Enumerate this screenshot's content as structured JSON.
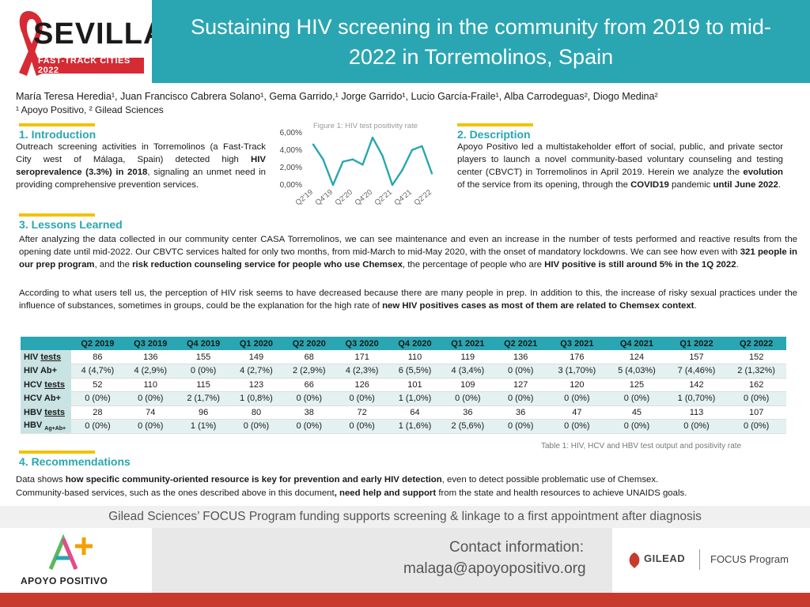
{
  "header": {
    "title": "Sustaining HIV screening in the community from 2019 to mid-2022 in Torremolinos, Spain",
    "logo_word": "SEVILLA",
    "logo_band": "FAST-TRACK CITIES 2022"
  },
  "authors": {
    "line": "María Teresa Heredia¹, Juan Francisco Cabrera Solano¹, Gema Garrido,¹ Jorge Garrido¹, Lucio García-Fraile¹, Alba Carrodeguas², Diogo Medina²",
    "affiliations": "¹ Apoyo Positivo, ² Gilead Sciences"
  },
  "sections": {
    "intro_title": "1. Introduction",
    "intro_text_1": "Outreach screening activities in Torremolinos (a Fast-Track City west of Málaga, Spain) detected high ",
    "intro_bold_1": "HIV seroprevalence (3.3%) in 2018",
    "intro_text_2": ", signaling an unmet need in providing comprehensive prevention services.",
    "desc_title": "2. Description",
    "desc_text_1": "Apoyo Positivo led a multistakeholder effort of social, public, and private sector players to launch a novel community-based voluntary counseling and testing center (CBVCT) in Torremolinos in April 2019. Herein we analyze the ",
    "desc_bold_1": "evolution",
    "desc_text_2": " of the service from its opening, through the ",
    "desc_bold_2": "COVID19",
    "desc_text_3": " pandemic ",
    "desc_bold_3": "until June 2022",
    "desc_text_4": ".",
    "lessons_title": "3. Lessons Learned",
    "lessons_p1_a": "After analyzing the data collected in our community center CASA Torremolinos, we can see maintenance and even an increase in the number of tests performed and reactive results from the opening date until mid-2022. Our CBVTC services halted for only two months, from mid-March to mid-May 2020, with the onset of mandatory lockdowns. We can see how even with ",
    "lessons_p1_b": "321 people in our prep program",
    "lessons_p1_c": ", and the ",
    "lessons_p1_d": "risk reduction counseling service for people who use Chemsex",
    "lessons_p1_e": ", the percentage of people who are ",
    "lessons_p1_f": "HIV positive is still around 5% in the 1Q 2022",
    "lessons_p1_g": ".",
    "lessons_p2_a": "According to what users tell us, the perception of HIV risk seems to have decreased because there are many people in prep. In addition to this, the increase of risky sexual practices under the influence of substances, sometimes in groups, could be the explanation for the high rate of ",
    "lessons_p2_b": "new HIV positives cases as most of them are related to Chemsex context",
    "lessons_p2_c": ".",
    "reco_title": "4. Recommendations",
    "reco_l1_a": "Data shows ",
    "reco_l1_b": "how specific community-oriented resource is key for prevention and early HIV detection",
    "reco_l1_c": ", even to detect possible problematic use of Chemsex.",
    "reco_l2_a": "Community-based services, such as the ones described above in this document",
    "reco_l2_b": ", need help and support",
    "reco_l2_c": " from the state and health resources to achieve UNAIDS goals."
  },
  "chart_data": {
    "type": "line",
    "title": "Figure 1: HIV test positivity rate",
    "x": [
      "Q2'19",
      "Q3'19",
      "Q4'19",
      "Q1'20",
      "Q2'20",
      "Q3'20",
      "Q4'20",
      "Q1'21",
      "Q2'21",
      "Q3'21",
      "Q4'21",
      "Q1'22",
      "Q2'22"
    ],
    "x_tick_labels": [
      "Q2'19",
      "Q4'19",
      "Q2'20",
      "Q4'20",
      "Q2'21",
      "Q4'21",
      "Q2'22"
    ],
    "values": [
      4.65,
      2.94,
      0.0,
      2.68,
      2.94,
      2.34,
      5.45,
      3.36,
      0.0,
      1.7,
      4.03,
      4.46,
      1.32
    ],
    "y_ticks": [
      "0,00%",
      "2,00%",
      "4,00%",
      "6,00%"
    ],
    "ylim": [
      0,
      6
    ],
    "color": "#2aa6b2"
  },
  "table": {
    "columns": [
      "",
      "Q2 2019",
      "Q3 2019",
      "Q4 2019",
      "Q1 2020",
      "Q2 2020",
      "Q3 2020",
      "Q4 2020",
      "Q1 2021",
      "Q2 2021",
      "Q3 2021",
      "Q4 2021",
      "Q1 2022",
      "Q2 2022"
    ],
    "rows": [
      {
        "label_a": "HIV ",
        "label_u": "tests",
        "label_sub": "",
        "cells": [
          "86",
          "136",
          "155",
          "149",
          "68",
          "171",
          "110",
          "119",
          "136",
          "176",
          "124",
          "157",
          "152"
        ]
      },
      {
        "label_a": "HIV Ab+",
        "label_u": "",
        "label_sub": "",
        "cells": [
          "4 (4,7%)",
          "4 (2,9%)",
          "0 (0%)",
          "4 (2,7%)",
          "2 (2,9%)",
          "4 (2,3%)",
          "6 (5,5%)",
          "4 (3,4%)",
          "0 (0%)",
          "3 (1,70%)",
          "5 (4,03%)",
          "7 (4,46%)",
          "2 (1,32%)"
        ]
      },
      {
        "label_a": "HCV ",
        "label_u": "tests",
        "label_sub": "",
        "cells": [
          "52",
          "110",
          "115",
          "123",
          "66",
          "126",
          "101",
          "109",
          "127",
          "120",
          "125",
          "142",
          "162"
        ]
      },
      {
        "label_a": "HCV Ab+",
        "label_u": "",
        "label_sub": "",
        "cells": [
          "0 (0%)",
          "0 (0%)",
          "2 (1,7%)",
          "1 (0,8%)",
          "0 (0%)",
          "0 (0%)",
          "1 (1,0%)",
          "0 (0%)",
          "0 (0%)",
          "0 (0%)",
          "0 (0%)",
          "1 (0,70%)",
          "0 (0%)"
        ]
      },
      {
        "label_a": "HBV ",
        "label_u": "tests",
        "label_sub": "",
        "cells": [
          "28",
          "74",
          "96",
          "80",
          "38",
          "72",
          "64",
          "36",
          "36",
          "47",
          "45",
          "113",
          "107"
        ]
      },
      {
        "label_a": "HBV ",
        "label_u": "",
        "label_sub": "Ag+Ab+",
        "cells": [
          "0 (0%)",
          "0 (0%)",
          "1 (1%)",
          "0 (0%)",
          "0 (0%)",
          "0 (0%)",
          "1 (1,6%)",
          "2 (5,6%)",
          "0 (0%)",
          "0 (0%)",
          "0 (0%)",
          "0 (0%)",
          "0 (0%)"
        ]
      }
    ],
    "caption": "Table 1: HIV, HCV and HBV test output and positivity rate"
  },
  "footer": {
    "funding": "Gilead Sciences’ FOCUS Program funding supports screening & linkage to a first appointment after diagnosis",
    "contact_label": "Contact information:",
    "contact_email": "malaga@apoyopositivo.org",
    "apoyo_name": "APOYO POSITIVO",
    "gilead_name": "GILEAD",
    "gilead_program": "FOCUS Program"
  },
  "colors": {
    "accent": "#2aa6b2",
    "highlight": "#f2c200",
    "brand_red": "#c83a2e"
  }
}
